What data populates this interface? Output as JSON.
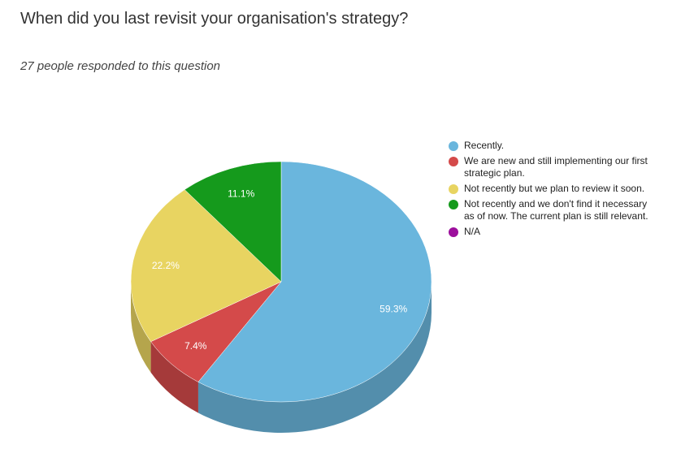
{
  "question": {
    "title": "When did you last revisit your organisation's strategy?",
    "responses": "27 people responded to this question"
  },
  "chart_data": {
    "type": "pie",
    "title": "",
    "slices": [
      {
        "label": "Recently.",
        "value": 59.3,
        "value_label": "59.3%",
        "color": "#6ab6dd"
      },
      {
        "label": "We are new and still implementing our first strategic plan.",
        "value": 7.4,
        "value_label": "7.4%",
        "color": "#d44a4a"
      },
      {
        "label": "Not recently but we plan to review it soon.",
        "value": 22.2,
        "value_label": "22.2%",
        "color": "#e8d461"
      },
      {
        "label": "Not recently and we don't find it necessary as of now. The current plan is still relevant.",
        "value": 11.1,
        "value_label": "11.1%",
        "color": "#159a1c"
      },
      {
        "label": "N/A",
        "value": 0,
        "value_label": "",
        "color": "#9c0f9c"
      }
    ],
    "legend_placement": "right",
    "style": "3d"
  }
}
